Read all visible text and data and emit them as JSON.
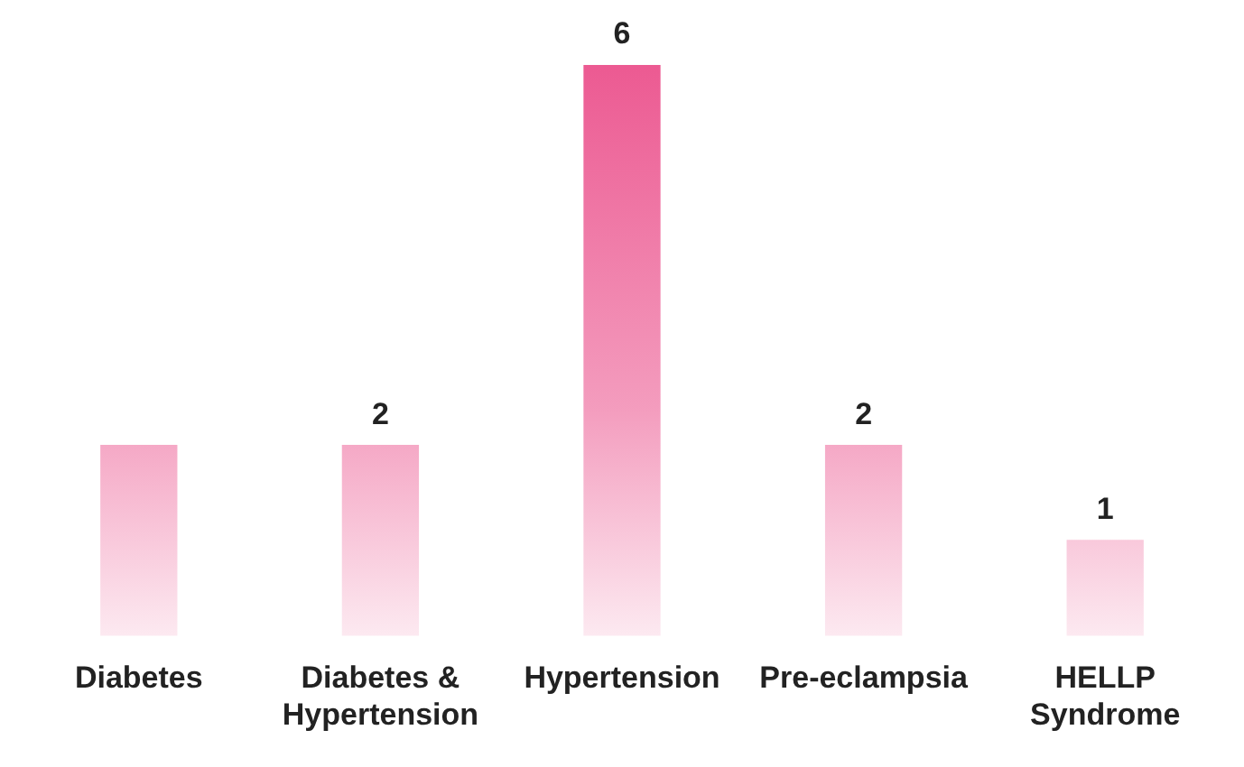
{
  "chart_data": {
    "type": "bar",
    "categories": [
      "Diabetes",
      "Diabetes & Hypertension",
      "Hypertension",
      "Pre-eclampsia",
      "HELLP Syndrome"
    ],
    "values": [
      2,
      2,
      6,
      2,
      1
    ],
    "value_labels": [
      null,
      "2",
      "6",
      "2",
      "1"
    ],
    "color": "#ec5a92",
    "ylim": [
      0,
      6
    ],
    "tick_labels": "x",
    "grid": false,
    "legend": false
  }
}
